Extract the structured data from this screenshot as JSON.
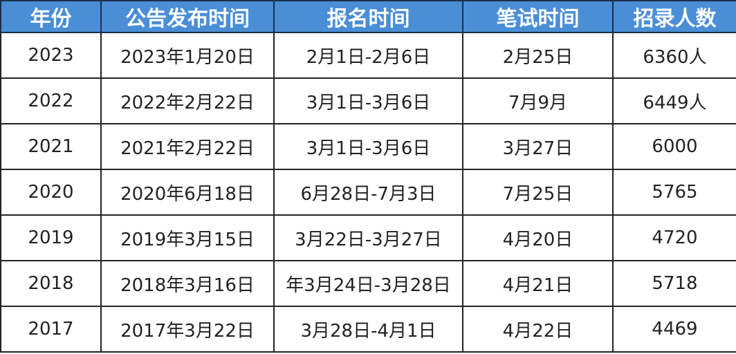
{
  "table": {
    "headers": [
      "年份",
      "公告发布时间",
      "报名时间",
      "笔试时间",
      "招录人数"
    ],
    "rows": [
      [
        "2023",
        "2023年1月20日",
        "2月1日-2月6日",
        "2月25日",
        "6360人"
      ],
      [
        "2022",
        "2022年2月22日",
        "3月1日-3月6日",
        "7月9月",
        "6449人"
      ],
      [
        "2021",
        "2021年2月22日",
        "3月1日-3月6日",
        "3月27日",
        "6000"
      ],
      [
        "2020",
        "2020年6月18日",
        "6月28日-7月3日",
        "7月25日",
        "5765"
      ],
      [
        "2019",
        "2019年3月15日",
        "3月22日-3月27日",
        "4月20日",
        "4720"
      ],
      [
        "2018",
        "2018年3月16日",
        "年3月24日-3月28日",
        "4月21日",
        "5718"
      ],
      [
        "2017",
        "2017年3月22日",
        "3月28日-4月1日",
        "4月22日",
        "4469"
      ]
    ],
    "header_color": "#4a8ed6"
  }
}
